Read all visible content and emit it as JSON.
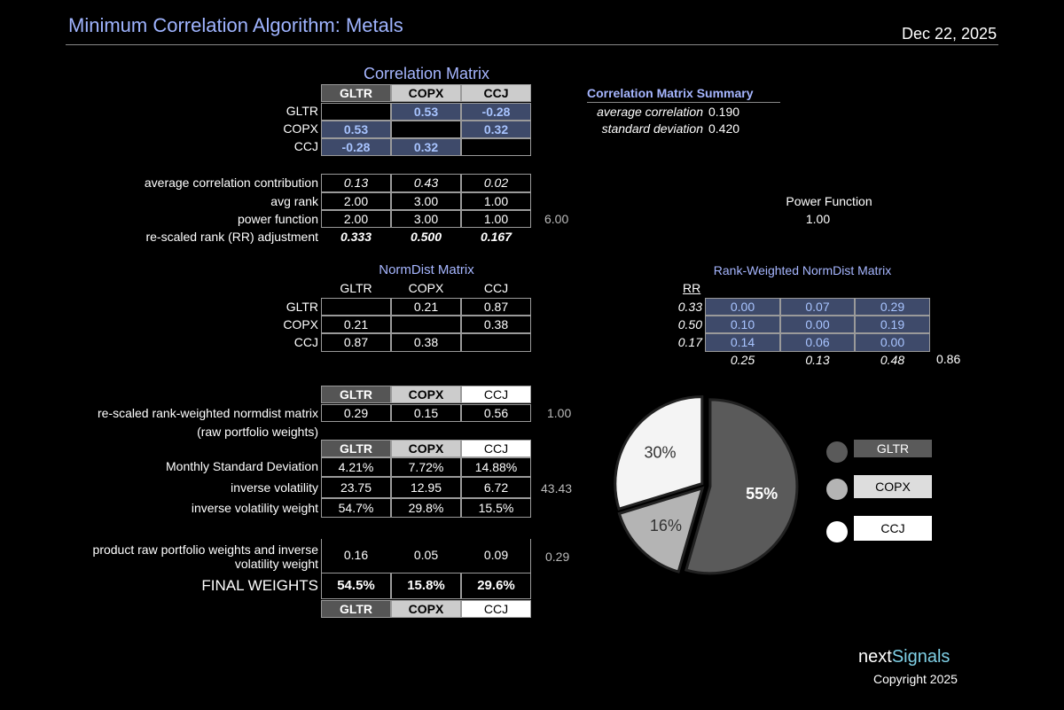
{
  "header": {
    "title": "Minimum Correlation Algorithm:  Metals",
    "date": "Dec 22, 2025"
  },
  "correlation_matrix": {
    "title": "Correlation Matrix",
    "columns": [
      "GLTR",
      "COPX",
      "CCJ"
    ],
    "rows": [
      {
        "label": "GLTR",
        "cells": [
          "",
          "0.53",
          "-0.28"
        ]
      },
      {
        "label": "COPX",
        "cells": [
          "0.53",
          "",
          "0.32"
        ]
      },
      {
        "label": "CCJ",
        "cells": [
          "-0.28",
          "0.32",
          ""
        ]
      }
    ]
  },
  "summary": {
    "title": "Correlation Matrix Summary",
    "avg_label": "average correlation",
    "avg_value": "0.190",
    "std_label": "standard deviation",
    "std_value": "0.420"
  },
  "stats": {
    "rows": [
      {
        "label": "average correlation contribution",
        "cells": [
          "0.13",
          "0.43",
          "0.02"
        ],
        "total": ""
      },
      {
        "label": "avg rank",
        "cells": [
          "2.00",
          "3.00",
          "1.00"
        ],
        "total": ""
      },
      {
        "label": "power function",
        "cells": [
          "2.00",
          "3.00",
          "1.00"
        ],
        "total": "6.00"
      },
      {
        "label": "re-scaled rank (RR) adjustment",
        "cells": [
          "0.333",
          "0.500",
          "0.167"
        ],
        "total": ""
      }
    ]
  },
  "power_function": {
    "label": "Power Function",
    "value": "1.00"
  },
  "normdist": {
    "title": "NormDist Matrix",
    "columns": [
      "GLTR",
      "COPX",
      "CCJ"
    ],
    "rows": [
      {
        "label": "GLTR",
        "cells": [
          "",
          "0.21",
          "0.87"
        ]
      },
      {
        "label": "COPX",
        "cells": [
          "0.21",
          "",
          "0.38"
        ]
      },
      {
        "label": "CCJ",
        "cells": [
          "0.87",
          "0.38",
          ""
        ]
      }
    ]
  },
  "rank_weighted": {
    "title": "Rank-Weighted NormDist Matrix",
    "rr_label": "RR",
    "rr": [
      "0.33",
      "0.50",
      "0.17"
    ],
    "rows": [
      [
        "0.00",
        "0.07",
        "0.29"
      ],
      [
        "0.10",
        "0.00",
        "0.19"
      ],
      [
        "0.14",
        "0.06",
        "0.00"
      ]
    ],
    "col_sums": [
      "0.25",
      "0.13",
      "0.48"
    ],
    "total": "0.86"
  },
  "weights": {
    "columns": [
      "GLTR",
      "COPX",
      "CCJ"
    ],
    "raw_label": "re-scaled rank-weighted normdist matrix",
    "raw_sub_label": "(raw portfolio weights)",
    "raw_cells": [
      "0.29",
      "0.15",
      "0.56"
    ],
    "raw_total": "1.00",
    "std_label": "Monthly Standard Deviation",
    "std_cells": [
      "4.21%",
      "7.72%",
      "14.88%"
    ],
    "invvol_label": "inverse volatility",
    "invvol_cells": [
      "23.75",
      "12.95",
      "6.72"
    ],
    "invvol_total": "43.43",
    "invw_label": "inverse volatility weight",
    "invw_cells": [
      "54.7%",
      "29.8%",
      "15.5%"
    ],
    "product_label_1": "product raw portfolio weights and inverse",
    "product_label_2": "volatility weight",
    "product_cells": [
      "0.16",
      "0.05",
      "0.09"
    ],
    "product_total": "0.29",
    "final_label": "FINAL WEIGHTS",
    "final_cells": [
      "54.5%",
      "15.8%",
      "29.6%"
    ]
  },
  "chart_data": {
    "type": "pie",
    "title": "",
    "categories": [
      "GLTR",
      "COPX",
      "CCJ"
    ],
    "values": [
      55,
      16,
      30
    ],
    "labels": [
      "55%",
      "16%",
      "30%"
    ],
    "colors": [
      "#5a5a5a",
      "#b4b4b4",
      "#f4f4f4"
    ],
    "legend": [
      "GLTR",
      "COPX",
      "CCJ"
    ]
  },
  "footer": {
    "brand_a": "next",
    "brand_b": "Signals",
    "copyright": "Copyright 2025"
  }
}
